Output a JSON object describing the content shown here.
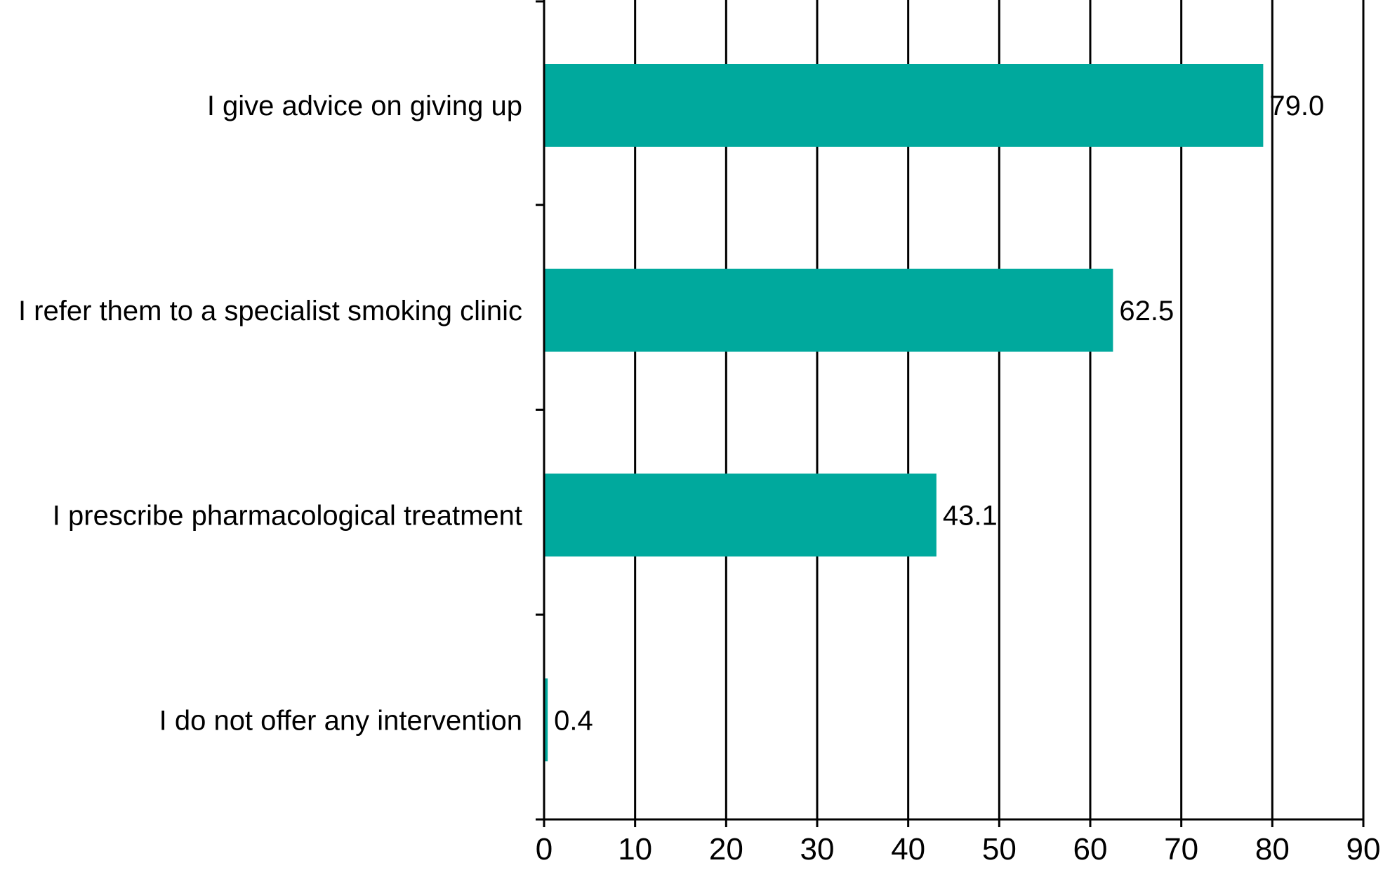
{
  "chart_data": {
    "type": "bar",
    "orientation": "horizontal",
    "categories": [
      "I give advice on giving up",
      "I refer them to a specialist smoking clinic",
      "I prescribe pharmacological treatment",
      "I do not offer any intervention"
    ],
    "values": [
      79.0,
      62.5,
      43.1,
      0.4
    ],
    "data_labels": [
      "79.0",
      "62.5",
      "43.1",
      "0.4"
    ],
    "xlim": [
      0,
      90
    ],
    "x_ticks": [
      0,
      10,
      20,
      30,
      40,
      50,
      60,
      70,
      80,
      90
    ],
    "x_tick_labels": [
      "0",
      "10",
      "20",
      "30",
      "40",
      "50",
      "60",
      "70",
      "80",
      "90"
    ],
    "grid": "vertical",
    "legend": "none",
    "bar_color": "#00A99D",
    "axis_color": "#000000",
    "title": "",
    "xlabel": "",
    "ylabel": ""
  }
}
